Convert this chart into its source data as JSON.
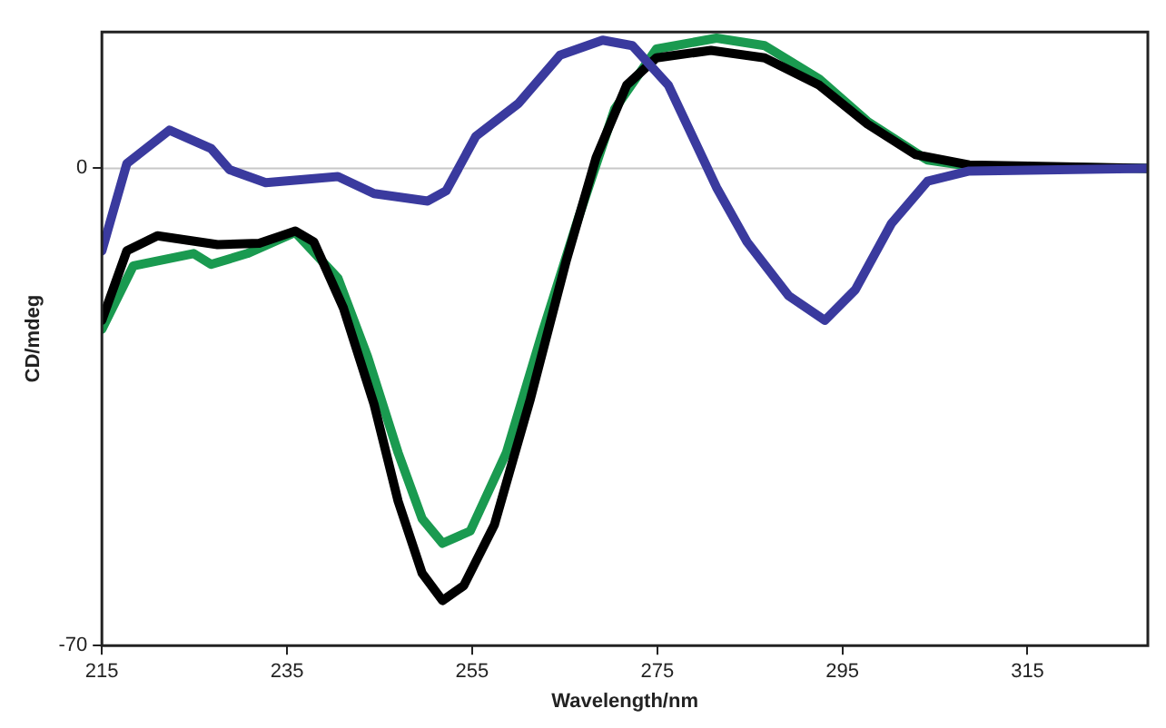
{
  "chart_data": {
    "type": "line",
    "xlabel": "Wavelength/nm",
    "ylabel": "CD/mdeg",
    "xlim": [
      215,
      328
    ],
    "xticks": [
      215,
      235,
      255,
      275,
      295,
      315
    ],
    "ylim": [
      -70,
      20
    ],
    "yticks": [
      -70,
      0
    ],
    "grid": false,
    "legend": false,
    "marker": "none",
    "line_style": "solid",
    "ref_lines": [
      {
        "axis": "y",
        "value": 0,
        "color": "#c8c8c8"
      }
    ],
    "series": [
      {
        "color": "#3a3a9e",
        "x": [
          215,
          217.7,
          222.3,
          226.8,
          228.8,
          232.7,
          240.5,
          244.4,
          250.2,
          252.2,
          255.4,
          260,
          264.5,
          269.1,
          272.3,
          276.2,
          281.4,
          284.7,
          289.2,
          293.1,
          296.4,
          300.3,
          304.2,
          308.7,
          328
        ],
        "values": [
          -12.1,
          0.7,
          5.6,
          2.9,
          -0.2,
          -2.1,
          -1.2,
          -3.7,
          -4.8,
          -3.3,
          4.7,
          9.5,
          16.6,
          18.8,
          18,
          12.2,
          -2.8,
          -10.8,
          -18.7,
          -22.3,
          -17.8,
          -8.1,
          -1.9,
          -0.4,
          0
        ]
      },
      {
        "color": "#000000",
        "x": [
          215,
          217.7,
          221,
          227.5,
          232,
          235.9,
          237.9,
          241.1,
          244.4,
          247,
          249.6,
          251.8,
          254.1,
          257.4,
          261.3,
          265.2,
          268.4,
          271.7,
          274.9,
          280.8,
          286.6,
          292.5,
          297.7,
          302.9,
          308.7,
          328
        ],
        "values": [
          -22.3,
          -12.1,
          -9.9,
          -11.2,
          -11,
          -9.2,
          -10.8,
          -20.5,
          -34.6,
          -48.8,
          -59.4,
          -63.4,
          -61.2,
          -52.3,
          -33.8,
          -13.4,
          1.6,
          12.2,
          16.2,
          17.3,
          16.2,
          12.2,
          6.5,
          2,
          0.5,
          0
        ]
      },
      {
        "color": "#1a9a50",
        "x": [
          215,
          218.4,
          224.9,
          226.8,
          230.7,
          235.9,
          240.5,
          243.7,
          247,
          249.6,
          251.8,
          254.8,
          258.7,
          262.6,
          266.5,
          270.4,
          274.9,
          281.4,
          286.6,
          292.5,
          297.7,
          304.2,
          308.7,
          328
        ],
        "values": [
          -23.6,
          -14.3,
          -12.5,
          -14.1,
          -12.5,
          -9.4,
          -16.1,
          -27.6,
          -41.7,
          -51.4,
          -55,
          -53.2,
          -41.7,
          -24,
          -7.2,
          8.7,
          17.5,
          19.1,
          18,
          13.1,
          6.9,
          1.2,
          0.3,
          0
        ]
      }
    ]
  }
}
